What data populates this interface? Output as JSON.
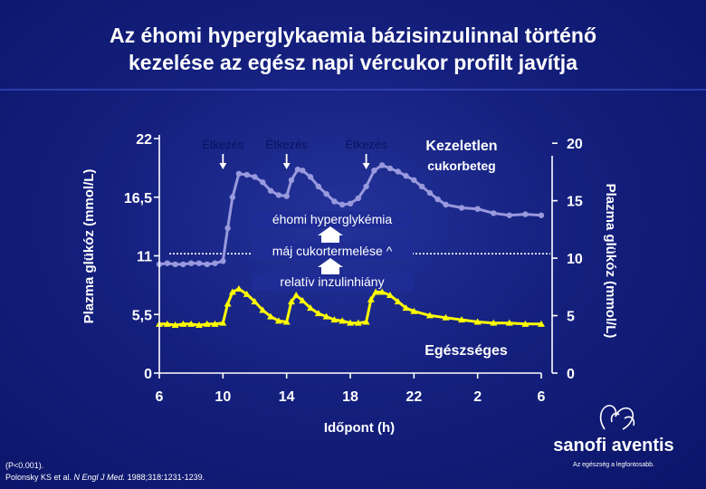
{
  "slide": {
    "title_line1": "Az éhomi hyperglykaemia bázisinzulinnal történő",
    "title_line2": "kezelése az egész napi vércukor profilt javítja",
    "footnote_p": "(P<0.001).",
    "citation_authors": "Polonsky KS et al. ",
    "citation_journal": "N Engl J Med.",
    "citation_details": " 1988;318:1231-1239.",
    "logo_text": "sanofi aventis",
    "logo_tagline": "Az egészség a legfontosabb."
  },
  "chart_data": {
    "type": "line",
    "xlabel": "Időpont (h)",
    "x_ticks": [
      "6",
      "10",
      "14",
      "18",
      "22",
      "2",
      "6"
    ],
    "x_tick_hours": [
      6,
      10,
      14,
      18,
      22,
      26,
      30
    ],
    "xlim": [
      6,
      30
    ],
    "ylabel_left": "Plazma glükóz (mmol/L)",
    "ylabel_right": "Plazma glükóz (mmol/L)",
    "y_ticks_left": [
      "0",
      "5,5",
      "11",
      "16,5",
      "22"
    ],
    "y_ticks_left_values": [
      0,
      5.5,
      11,
      16.5,
      22
    ],
    "y_ticks_right": [
      "0",
      "5",
      "10",
      "15",
      "20"
    ],
    "y_ticks_right_values": [
      0,
      5,
      10,
      15,
      20
    ],
    "ylim": [
      0,
      22
    ],
    "grid": false,
    "reference_line_value": 11.2,
    "meal_labels": [
      "Étkezés",
      "Étkezés",
      "Étkezés"
    ],
    "meal_hours": [
      10,
      14,
      19
    ],
    "annotations": {
      "series_untreated": "Kezeletlen",
      "series_untreated_line2": "cukorbeteg",
      "series_healthy": "Egészséges",
      "box1": "éhomi hyperglykémia",
      "box2": "máj cukortermelése ^",
      "box3": "relatív inzulinhiány"
    },
    "series": [
      {
        "name": "Kezeletlen cukorbeteg",
        "color": "#9999dd",
        "x": [
          6,
          6.5,
          7,
          7.5,
          8,
          8.5,
          9,
          9.5,
          10,
          10.3,
          10.6,
          11,
          11.5,
          12,
          12.5,
          13,
          13.5,
          14,
          14.3,
          14.7,
          15,
          15.5,
          16,
          16.5,
          17,
          17.5,
          18,
          18.5,
          19,
          19.5,
          20,
          20.5,
          21,
          21.5,
          22,
          22.5,
          23,
          23.5,
          24,
          25,
          26,
          27,
          28,
          29,
          30
        ],
        "y": [
          10.2,
          10.3,
          10.2,
          10.2,
          10.3,
          10.3,
          10.2,
          10.3,
          10.5,
          13.6,
          16.5,
          18.7,
          18.6,
          18.4,
          17.9,
          17.1,
          16.7,
          16.6,
          18.1,
          19.1,
          19.0,
          18.4,
          17.5,
          16.8,
          16.1,
          15.8,
          15.9,
          16.4,
          17.5,
          19.0,
          19.5,
          19.2,
          18.9,
          18.5,
          18.1,
          17.5,
          16.9,
          16.3,
          15.8,
          15.5,
          15.4,
          15.0,
          14.8,
          14.9,
          14.8
        ]
      },
      {
        "name": "Egészséges",
        "color": "#ffff00",
        "x": [
          6,
          6.5,
          7,
          7.5,
          8,
          8.5,
          9,
          9.5,
          10,
          10.3,
          10.6,
          11,
          11.5,
          12,
          12.5,
          13,
          13.5,
          14,
          14.3,
          14.6,
          15,
          15.5,
          16,
          16.5,
          17,
          17.5,
          18,
          18.5,
          19,
          19.3,
          19.6,
          20,
          20.5,
          21,
          21.5,
          22,
          23,
          24,
          25,
          26,
          27,
          28,
          29,
          30
        ],
        "y": [
          4.6,
          4.6,
          4.5,
          4.6,
          4.6,
          4.5,
          4.6,
          4.6,
          4.7,
          6.5,
          7.6,
          7.9,
          7.4,
          6.7,
          5.9,
          5.3,
          4.9,
          4.8,
          6.7,
          7.3,
          6.8,
          6.1,
          5.6,
          5.3,
          5.0,
          4.9,
          4.7,
          4.7,
          4.8,
          6.9,
          7.6,
          7.6,
          7.3,
          6.7,
          6.1,
          5.8,
          5.4,
          5.2,
          5.0,
          4.8,
          4.7,
          4.7,
          4.6,
          4.6
        ]
      }
    ]
  }
}
